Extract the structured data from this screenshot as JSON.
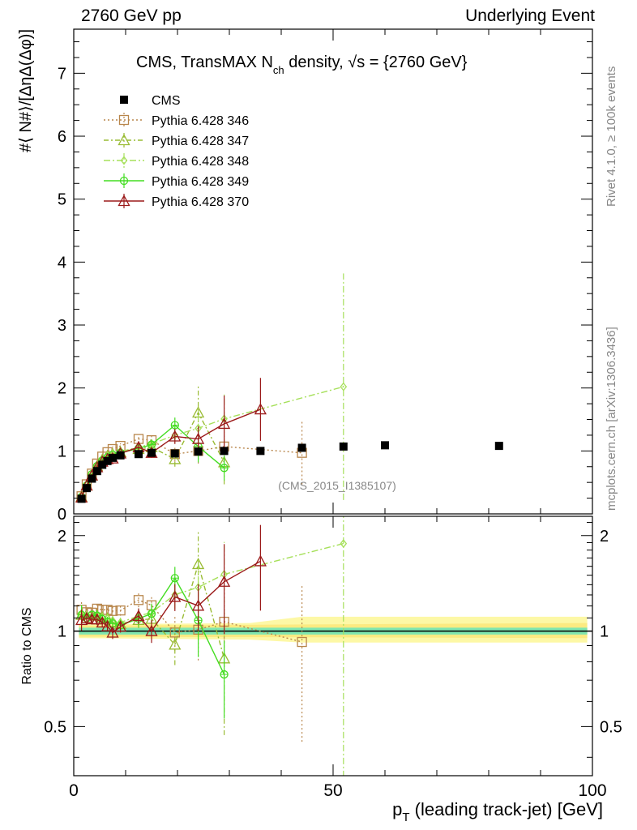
{
  "header": {
    "left": "2760 GeV pp",
    "right": "Underlying Event"
  },
  "side_labels": {
    "rivet": "Rivet 4.1.0, ≥ 100k events",
    "mcplots": "mcplots.cern.ch [arXiv:1306.3436]"
  },
  "chart_data": {
    "type": "scatter",
    "title_main": "CMS, TransMAX N",
    "title_sub": "ch",
    "title_tail": " density, √s = {2760 GeV}",
    "ylabel": "#⟨ N#⟩/[ΔηΔ(Δφ)]",
    "ylabel_ratio": "Ratio to CMS",
    "xlabel": "p",
    "xlabel_sub": "T",
    "xlabel_tail": " (leading track-jet) [GeV]",
    "watermark": "(CMS_2015_I1385107)",
    "xlim": [
      0,
      100
    ],
    "ylim": [
      0,
      7.7
    ],
    "ratio_ylim": [
      0.35,
      2.3
    ],
    "x_ticks": [
      "0",
      "50",
      "100"
    ],
    "y_ticks": [
      "0",
      "1",
      "2",
      "3",
      "4",
      "5",
      "6",
      "7"
    ],
    "ratio_ticks": [
      "0.5",
      "1",
      "2"
    ],
    "x_tick_values": [
      0,
      50,
      100
    ],
    "y_tick_values": [
      0,
      1,
      2,
      3,
      4,
      5,
      6,
      7
    ],
    "ratio_tick_values": [
      0.5,
      1,
      2
    ],
    "legend": [
      "CMS",
      "Pythia 6.428 346",
      "Pythia 6.428 347",
      "Pythia 6.428 348",
      "Pythia 6.428 349",
      "Pythia 6.428 370"
    ],
    "data": {
      "name": "CMS",
      "x": [
        1.5,
        2.5,
        3.5,
        4.5,
        5.5,
        6.5,
        7.5,
        9,
        12.5,
        15,
        19.5,
        24,
        29,
        36,
        44,
        52,
        60,
        82
      ],
      "y": [
        0.24,
        0.41,
        0.56,
        0.68,
        0.78,
        0.84,
        0.89,
        0.93,
        0.95,
        0.97,
        0.96,
        0.99,
        1.0,
        1.0,
        1.05,
        1.07,
        1.09,
        1.08
      ]
    },
    "series": [
      {
        "name": "Pythia 6.428 346",
        "color": "#b8864b",
        "marker": "square",
        "dash": "2,3",
        "x": [
          1.5,
          2.5,
          3.5,
          4.5,
          5.5,
          6.5,
          7.5,
          9,
          12.5,
          15,
          19.5,
          24,
          29,
          44
        ],
        "y": [
          0.28,
          0.47,
          0.64,
          0.8,
          0.91,
          0.98,
          1.03,
          1.08,
          1.19,
          1.17,
          0.95,
          1.0,
          1.07,
          0.97
        ],
        "err": [
          0.02,
          0.02,
          0.02,
          0.03,
          0.03,
          0.03,
          0.04,
          0.04,
          0.06,
          0.08,
          0.12,
          0.2,
          0.3,
          0.5
        ]
      },
      {
        "name": "Pythia 6.428 347",
        "color": "#99bb33",
        "marker": "triangle",
        "dash": "6,3,2,3",
        "x": [
          1.5,
          2.5,
          3.5,
          4.5,
          5.5,
          6.5,
          7.5,
          9,
          12.5,
          15,
          19.5,
          24,
          29
        ],
        "y": [
          0.27,
          0.45,
          0.61,
          0.76,
          0.86,
          0.92,
          0.95,
          0.98,
          1.03,
          1.06,
          0.87,
          1.61,
          0.82
        ],
        "err": [
          0.02,
          0.02,
          0.02,
          0.03,
          0.03,
          0.03,
          0.04,
          0.04,
          0.06,
          0.08,
          0.12,
          0.45,
          0.35
        ]
      },
      {
        "name": "Pythia 6.428 348",
        "color": "#a6e05a",
        "marker": "diamond",
        "dash": "8,3,2,3",
        "x": [
          1.5,
          2.5,
          3.5,
          4.5,
          5.5,
          6.5,
          7.5,
          9,
          12.5,
          15,
          19.5,
          24,
          29,
          52
        ],
        "y": [
          0.27,
          0.46,
          0.62,
          0.76,
          0.86,
          0.92,
          0.96,
          0.99,
          1.06,
          1.11,
          1.25,
          1.36,
          1.51,
          2.02
        ],
        "err": [
          0.02,
          0.02,
          0.02,
          0.03,
          0.03,
          0.03,
          0.04,
          0.04,
          0.06,
          0.08,
          0.12,
          0.3,
          0.4,
          1.8
        ]
      },
      {
        "name": "Pythia 6.428 349",
        "color": "#44dd22",
        "marker": "circle",
        "dash": "",
        "x": [
          1.5,
          2.5,
          3.5,
          4.5,
          5.5,
          6.5,
          7.5,
          9,
          12.5,
          15,
          19.5,
          24,
          29
        ],
        "y": [
          0.27,
          0.45,
          0.63,
          0.76,
          0.85,
          0.9,
          0.94,
          0.97,
          1.04,
          1.1,
          1.41,
          1.07,
          0.73
        ],
        "err": [
          0.02,
          0.02,
          0.02,
          0.03,
          0.03,
          0.03,
          0.04,
          0.04,
          0.06,
          0.08,
          0.12,
          0.25,
          0.2
        ]
      },
      {
        "name": "Pythia 6.428 370",
        "color": "#9b1a1a",
        "marker": "triangle",
        "dash": "",
        "x": [
          1.5,
          2.5,
          3.5,
          4.5,
          5.5,
          6.5,
          7.5,
          9,
          12.5,
          15,
          19.5,
          24,
          29,
          36
        ],
        "y": [
          0.26,
          0.45,
          0.61,
          0.74,
          0.83,
          0.87,
          0.88,
          0.96,
          1.06,
          0.97,
          1.23,
          1.19,
          1.43,
          1.66
        ],
        "err": [
          0.02,
          0.02,
          0.02,
          0.03,
          0.03,
          0.03,
          0.04,
          0.04,
          0.06,
          0.08,
          0.12,
          0.2,
          0.45,
          0.5
        ]
      }
    ]
  }
}
